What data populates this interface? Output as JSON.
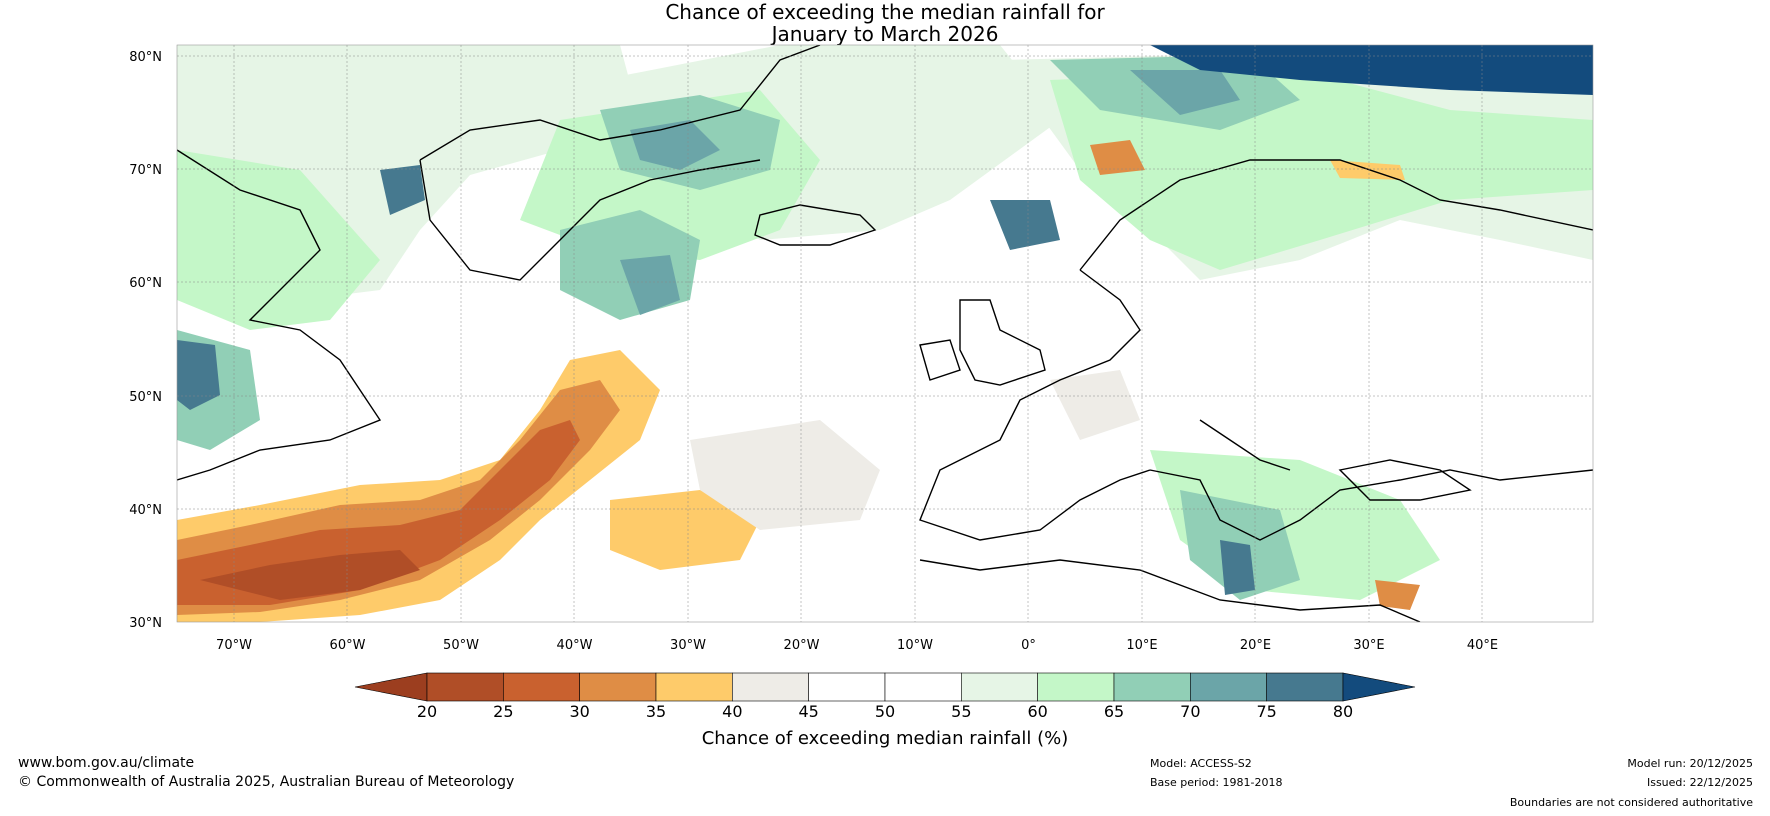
{
  "title": {
    "line1": "Chance of exceeding the median rainfall for",
    "line2": "January to March 2026"
  },
  "map": {
    "region": "North Atlantic and Europe",
    "lat_labels": [
      "80°N",
      "70°N",
      "60°N",
      "50°N",
      "40°N",
      "30°N"
    ],
    "lon_labels": [
      "70°W",
      "60°W",
      "50°W",
      "40°W",
      "30°W",
      "20°W",
      "10°W",
      "0°",
      "10°E",
      "20°E",
      "30°E",
      "40°E"
    ]
  },
  "colorbar": {
    "title": "Chance of exceeding median rainfall (%)",
    "ticks": [
      "20",
      "25",
      "30",
      "35",
      "40",
      "45",
      "50",
      "55",
      "60",
      "65",
      "70",
      "75",
      "80"
    ],
    "colors": [
      "#9c3e1f",
      "#b04e27",
      "#c9612f",
      "#df8d45",
      "#fecb6a",
      "#eeece7",
      "#ffffff",
      "#ffffff",
      "#e6f5e6",
      "#c4f7c8",
      "#91cfb6",
      "#6ba5a8",
      "#46798f",
      "#134b7d"
    ]
  },
  "footer": {
    "website": "www.bom.gov.au/climate",
    "copyright": "© Commonwealth of Australia 2025, Australian Bureau of Meteorology",
    "model": "Model: ACCESS-S2",
    "base_period": "Base period: 1981-2018",
    "model_run": "Model run: 20/12/2025",
    "issued": "Issued: 22/12/2025",
    "disclaimer": "Boundaries are not considered authoritative"
  }
}
